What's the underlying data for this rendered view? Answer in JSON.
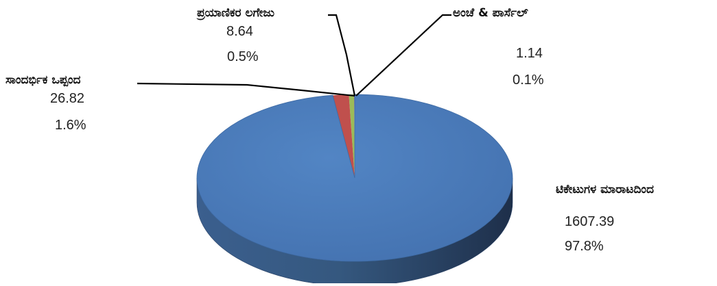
{
  "chart_data": {
    "type": "pie",
    "style": "3d",
    "title": "",
    "legend": "none",
    "slices": [
      {
        "label": "ಟಿಕೇಟುಗಳ ಮಾರಾಟದಿಂದ",
        "value": 1607.39,
        "percent": "97.8%",
        "color": "#4f81bd"
      },
      {
        "label": "ಸಾಂದರ್ಭಿಕ ಒಪ್ಪಂದ",
        "value": 26.82,
        "percent": "1.6%",
        "color": "#c0504d"
      },
      {
        "label": "ಪ್ರಯಾಣಿಕರ ಲಗೇಜು",
        "value": 8.64,
        "percent": "0.5%",
        "color": "#9bbb59"
      },
      {
        "label": "ಅಂಚೆ & ಪಾರ್ಸೆಲ್",
        "value": 1.14,
        "percent": "0.1%",
        "color": "#8064a2"
      }
    ]
  }
}
